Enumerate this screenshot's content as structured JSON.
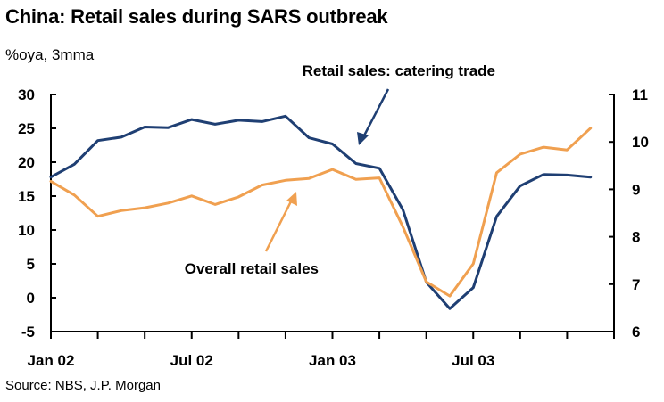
{
  "header": {
    "title": "China: Retail sales during SARS outbreak",
    "subtitle": "%oya, 3mma"
  },
  "footer": {
    "source": "Source: NBS, J.P. Morgan"
  },
  "chart_data": {
    "type": "line",
    "title": "China: Retail sales during SARS outbreak",
    "ylabel": "%oya, 3mma",
    "x_tick_labels": [
      "Jan 02",
      "Jul 02",
      "Jan 03",
      "Jul 03"
    ],
    "x_tick_months": [
      0,
      6,
      12,
      18
    ],
    "x_minor_ticks": [
      0,
      2,
      4,
      6,
      8,
      10,
      12,
      14,
      16,
      18,
      20,
      22,
      24
    ],
    "x_range": [
      0,
      24
    ],
    "y_left": {
      "range": [
        -5,
        30
      ],
      "ticks": [
        "-5",
        "0",
        "5",
        "10",
        "15",
        "20",
        "25",
        "30"
      ]
    },
    "y_right": {
      "range": [
        6,
        11
      ],
      "ticks": [
        "6",
        "7",
        "8",
        "9",
        "10",
        "11"
      ]
    },
    "series": [
      {
        "name": "Retail sales: catering trade",
        "axis": "left",
        "color": "#1f3f73",
        "months": [
          0,
          1,
          2,
          3,
          4,
          5,
          6,
          7,
          8,
          9,
          10,
          11,
          12,
          13,
          14,
          15,
          16,
          17,
          18,
          19,
          20,
          21,
          22,
          23,
          24
        ],
        "values": [
          17.8,
          19.7,
          23.2,
          23.7,
          25.2,
          25.1,
          26.3,
          25.6,
          26.2,
          26.0,
          26.8,
          23.6,
          22.7,
          19.8,
          19.1,
          13.0,
          2.3,
          -1.6,
          1.5,
          12.0,
          16.5,
          18.2,
          18.1,
          17.8,
          null
        ]
      },
      {
        "name": "Overall retail sales",
        "axis": "right",
        "color": "#f0a050",
        "months": [
          0,
          1,
          2,
          3,
          4,
          5,
          6,
          7,
          8,
          9,
          10,
          11,
          12,
          13,
          14,
          15,
          16,
          17,
          18,
          19,
          20,
          21,
          22,
          23,
          24
        ],
        "values": [
          9.17,
          8.88,
          8.43,
          8.55,
          8.61,
          8.71,
          8.86,
          8.68,
          8.84,
          9.09,
          9.19,
          9.23,
          9.42,
          9.21,
          9.24,
          8.21,
          7.05,
          6.75,
          7.43,
          9.35,
          9.74,
          9.89,
          9.83,
          10.29,
          null
        ]
      }
    ],
    "annotations": [
      {
        "text": "Retail sales: catering trade",
        "points_to": "Retail sales: catering trade"
      },
      {
        "text": "Overall retail sales",
        "points_to": "Overall retail sales"
      }
    ]
  }
}
